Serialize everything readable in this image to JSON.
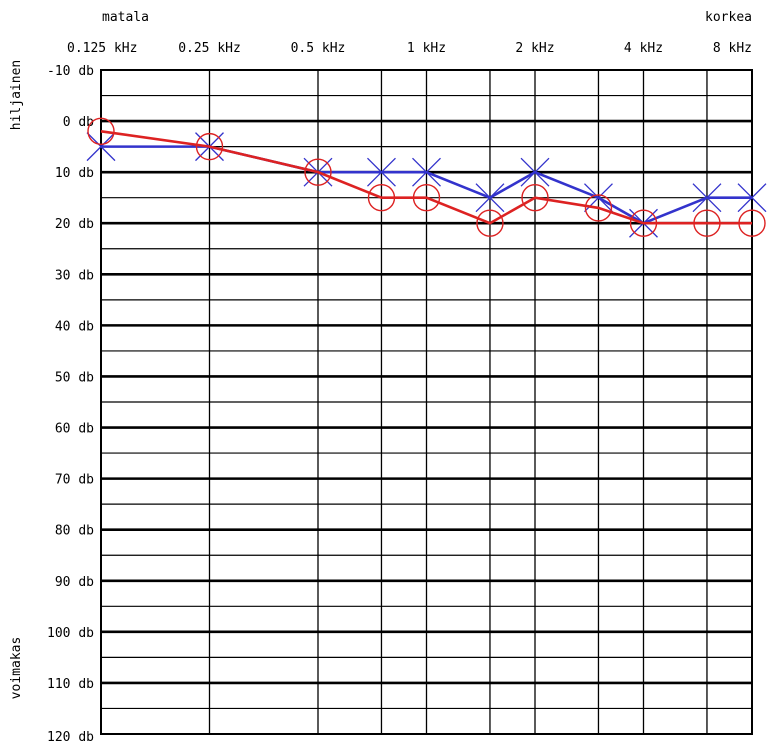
{
  "chart_data": {
    "type": "line",
    "title": "",
    "corner_labels": {
      "x_low": "matala",
      "x_high": "korkea",
      "y_top": "hiljainen",
      "y_bottom": "voimakas"
    },
    "x_ticks": [
      "0.125 kHz",
      "0.25 kHz",
      "0.5 kHz",
      "1 kHz",
      "2 kHz",
      "4 kHz",
      "8 kHz"
    ],
    "x_freqs": [
      0.125,
      0.25,
      0.5,
      1,
      2,
      4,
      8
    ],
    "x_minor_freqs": [
      0.75,
      1.5,
      3,
      6
    ],
    "x_scale": "log2",
    "y_ticks": [
      "-10 db",
      "0 db",
      "10 db",
      "20 db",
      "30 db",
      "40 db",
      "50 db",
      "60 db",
      "70 db",
      "80 db",
      "90 db",
      "100 db",
      "110 db",
      "120 db"
    ],
    "ylim": [
      -10,
      120
    ],
    "y_inverted": true,
    "series": [
      {
        "marker": "x",
        "color": "#3333cc",
        "x": [
          0.125,
          0.25,
          0.5,
          0.75,
          1,
          1.5,
          2,
          3,
          4,
          6,
          8
        ],
        "y": [
          5,
          5,
          10,
          10,
          10,
          15,
          10,
          15,
          20,
          15,
          15
        ]
      },
      {
        "marker": "o",
        "color": "#dd2222",
        "x": [
          0.125,
          0.25,
          0.5,
          0.75,
          1,
          1.5,
          2,
          3,
          4,
          6,
          8
        ],
        "y": [
          2,
          5,
          10,
          15,
          15,
          20,
          15,
          17,
          20,
          20,
          20
        ]
      }
    ]
  }
}
